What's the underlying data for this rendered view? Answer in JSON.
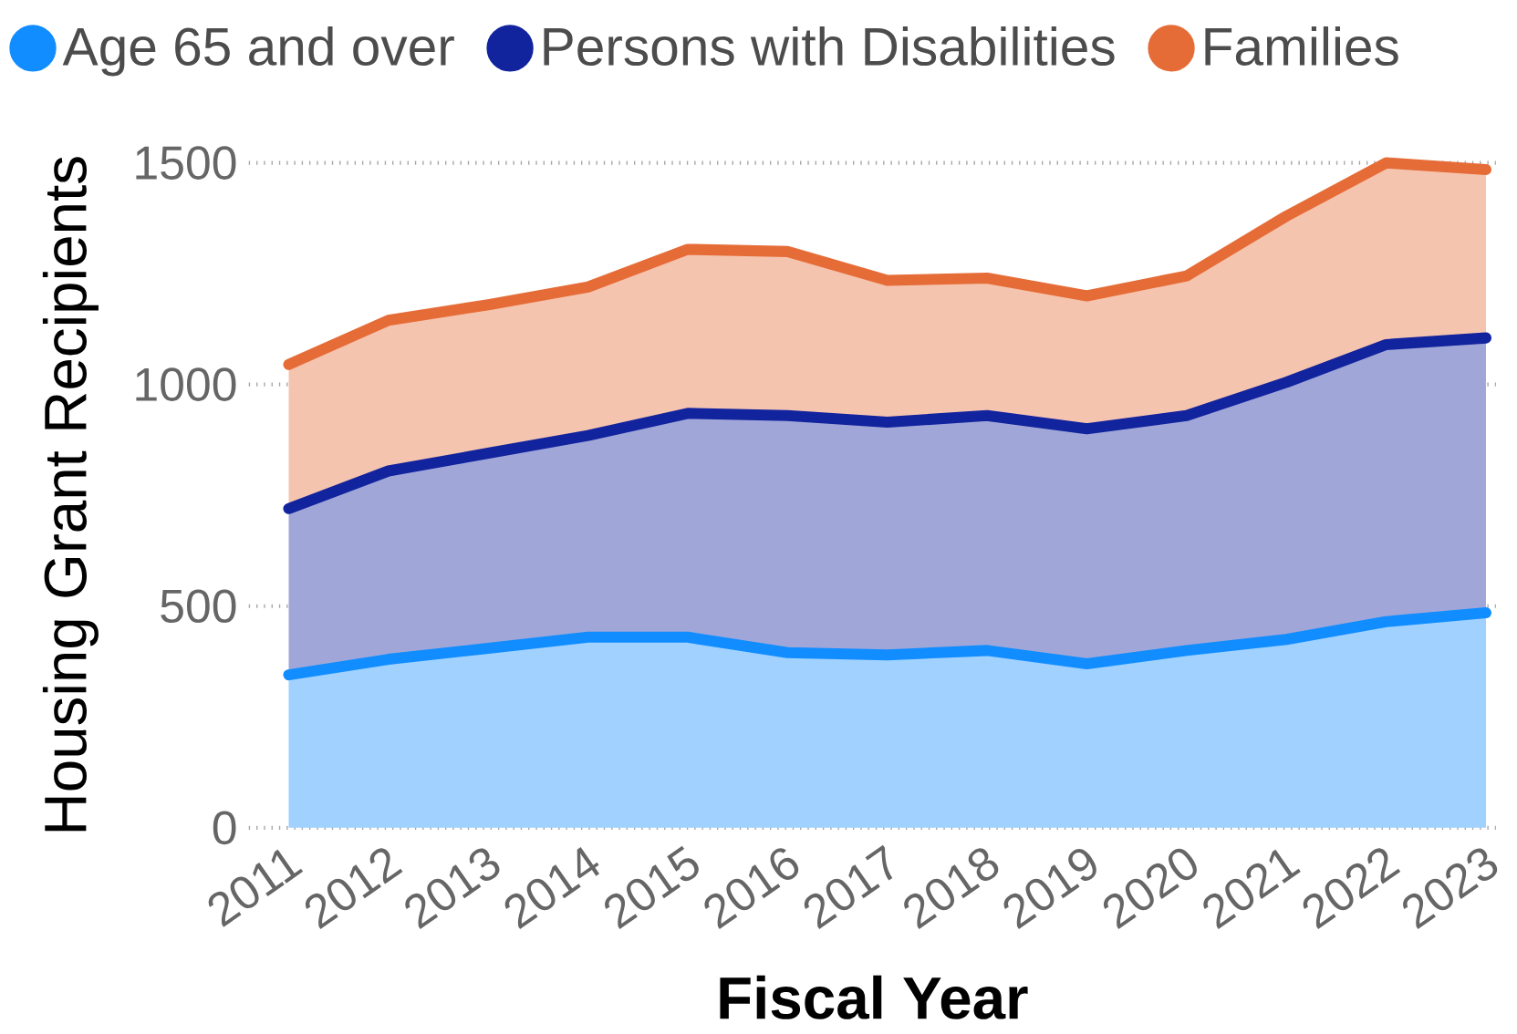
{
  "chart_data": {
    "type": "area",
    "stacked": true,
    "xlabel": "Fiscal Year",
    "ylabel": "Housing Grant Recipients",
    "categories": [
      "2011",
      "2012",
      "2013",
      "2014",
      "2015",
      "2016",
      "2017",
      "2018",
      "2019",
      "2020",
      "2021",
      "2022",
      "2023"
    ],
    "series": [
      {
        "name": "Age 65 and over",
        "color": "#118dff",
        "values": [
          345,
          380,
          405,
          430,
          430,
          395,
          390,
          400,
          370,
          400,
          425,
          465,
          485
        ]
      },
      {
        "name": "Persons with Disabilities",
        "color": "#12239e",
        "values": [
          375,
          425,
          440,
          455,
          505,
          535,
          525,
          530,
          530,
          530,
          580,
          625,
          620
        ]
      },
      {
        "name": "Families",
        "color": "#e66c37",
        "values": [
          325,
          340,
          335,
          335,
          370,
          370,
          320,
          310,
          300,
          315,
          375,
          410,
          380
        ]
      }
    ],
    "ylim": [
      0,
      1500
    ],
    "yticks": [
      0,
      500,
      1000,
      1500
    ],
    "grid": "y",
    "legend": "top left"
  }
}
